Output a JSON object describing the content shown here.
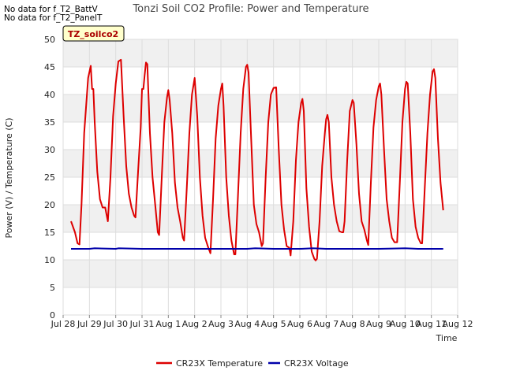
{
  "no_data_messages": [
    "No data for f_T2_BattV",
    "No data for f_T2_PanelT"
  ],
  "chart_data": {
    "type": "line",
    "title": "Tonzi Soil CO2 Profile: Power and Temperature",
    "xlabel": "Time",
    "ylabel": "Power (V) / Temperature (C)",
    "ylim": [
      0,
      50
    ],
    "xlim": [
      0,
      15
    ],
    "yticks": [
      0,
      5,
      10,
      15,
      20,
      25,
      30,
      35,
      40,
      45,
      50
    ],
    "xticks": [
      {
        "value": 0,
        "label": "Jul 28"
      },
      {
        "value": 1,
        "label": "Jul 29"
      },
      {
        "value": 2,
        "label": "Jul 30"
      },
      {
        "value": 3,
        "label": "Jul 31"
      },
      {
        "value": 4,
        "label": "Aug 1"
      },
      {
        "value": 5,
        "label": "Aug 2"
      },
      {
        "value": 6,
        "label": "Aug 3"
      },
      {
        "value": 7,
        "label": "Aug 4"
      },
      {
        "value": 8,
        "label": "Aug 5"
      },
      {
        "value": 9,
        "label": "Aug 6"
      },
      {
        "value": 10,
        "label": "Aug 7"
      },
      {
        "value": 11,
        "label": "Aug 8"
      },
      {
        "value": 12,
        "label": "Aug 9"
      },
      {
        "value": 13,
        "label": "Aug 10"
      },
      {
        "value": 14,
        "label": "Aug 11"
      },
      {
        "value": 15,
        "label": "Aug 12"
      }
    ],
    "annotation": "TZ_soilco2",
    "legend_position": "bottom",
    "series": [
      {
        "name": "CR23X Temperature",
        "color": "#dd0000",
        "points": [
          [
            0.3,
            17
          ],
          [
            0.45,
            15
          ],
          [
            0.55,
            13
          ],
          [
            0.62,
            12.8
          ],
          [
            0.7,
            20
          ],
          [
            0.8,
            33
          ],
          [
            0.95,
            43
          ],
          [
            1.05,
            45.2
          ],
          [
            1.1,
            41
          ],
          [
            1.15,
            41
          ],
          [
            1.2,
            35
          ],
          [
            1.3,
            26
          ],
          [
            1.4,
            21
          ],
          [
            1.5,
            19.5
          ],
          [
            1.6,
            19.5
          ],
          [
            1.7,
            17
          ],
          [
            1.8,
            25
          ],
          [
            1.9,
            36
          ],
          [
            2.0,
            42
          ],
          [
            2.1,
            46
          ],
          [
            2.2,
            46.3
          ],
          [
            2.3,
            36
          ],
          [
            2.4,
            27
          ],
          [
            2.5,
            22
          ],
          [
            2.6,
            19.5
          ],
          [
            2.7,
            18
          ],
          [
            2.75,
            17.7
          ],
          [
            2.85,
            26
          ],
          [
            2.95,
            34
          ],
          [
            3.0,
            41
          ],
          [
            3.05,
            41
          ],
          [
            3.1,
            43.5
          ],
          [
            3.15,
            45.8
          ],
          [
            3.2,
            45.5
          ],
          [
            3.3,
            33
          ],
          [
            3.4,
            25
          ],
          [
            3.5,
            20
          ],
          [
            3.6,
            15
          ],
          [
            3.65,
            14.5
          ],
          [
            3.75,
            25
          ],
          [
            3.85,
            35
          ],
          [
            3.95,
            39.5
          ],
          [
            4.0,
            40.8
          ],
          [
            4.05,
            39
          ],
          [
            4.15,
            33
          ],
          [
            4.25,
            24
          ],
          [
            4.35,
            19.5
          ],
          [
            4.45,
            17
          ],
          [
            4.55,
            14
          ],
          [
            4.6,
            13.5
          ],
          [
            4.7,
            23
          ],
          [
            4.8,
            33
          ],
          [
            4.9,
            40
          ],
          [
            5.0,
            43
          ],
          [
            5.1,
            36
          ],
          [
            5.2,
            25
          ],
          [
            5.3,
            18
          ],
          [
            5.4,
            14
          ],
          [
            5.5,
            12.5
          ],
          [
            5.6,
            11.2
          ],
          [
            5.7,
            21
          ],
          [
            5.8,
            32
          ],
          [
            5.9,
            38
          ],
          [
            6.0,
            41
          ],
          [
            6.05,
            42
          ],
          [
            6.1,
            38
          ],
          [
            6.2,
            25
          ],
          [
            6.3,
            18
          ],
          [
            6.4,
            13.5
          ],
          [
            6.5,
            11
          ],
          [
            6.55,
            11
          ],
          [
            6.65,
            22
          ],
          [
            6.75,
            33
          ],
          [
            6.85,
            41
          ],
          [
            6.95,
            45
          ],
          [
            7.0,
            45.4
          ],
          [
            7.05,
            44
          ],
          [
            7.15,
            32
          ],
          [
            7.25,
            20
          ],
          [
            7.35,
            16.5
          ],
          [
            7.45,
            15
          ],
          [
            7.55,
            12.5
          ],
          [
            7.6,
            13
          ],
          [
            7.7,
            25
          ],
          [
            7.8,
            35
          ],
          [
            7.9,
            40
          ],
          [
            8.0,
            41.2
          ],
          [
            8.1,
            41.3
          ],
          [
            8.2,
            30
          ],
          [
            8.3,
            20
          ],
          [
            8.4,
            15.5
          ],
          [
            8.5,
            12.5
          ],
          [
            8.6,
            12.2
          ],
          [
            8.65,
            10.8
          ],
          [
            8.75,
            17
          ],
          [
            8.85,
            28
          ],
          [
            8.95,
            35
          ],
          [
            9.05,
            38.5
          ],
          [
            9.1,
            39.2
          ],
          [
            9.15,
            37
          ],
          [
            9.25,
            23
          ],
          [
            9.35,
            16
          ],
          [
            9.45,
            11.5
          ],
          [
            9.55,
            10.2
          ],
          [
            9.6,
            9.9
          ],
          [
            9.65,
            10.2
          ],
          [
            9.75,
            17
          ],
          [
            9.85,
            27
          ],
          [
            9.95,
            33
          ],
          [
            10.0,
            35.5
          ],
          [
            10.05,
            36.3
          ],
          [
            10.1,
            35
          ],
          [
            10.2,
            25
          ],
          [
            10.3,
            20
          ],
          [
            10.4,
            17
          ],
          [
            10.5,
            15.2
          ],
          [
            10.6,
            15
          ],
          [
            10.65,
            15
          ],
          [
            10.7,
            17
          ],
          [
            10.8,
            28
          ],
          [
            10.9,
            37
          ],
          [
            11.0,
            39
          ],
          [
            11.05,
            38.5
          ],
          [
            11.15,
            31
          ],
          [
            11.25,
            22
          ],
          [
            11.35,
            17
          ],
          [
            11.45,
            15.5
          ],
          [
            11.55,
            13.5
          ],
          [
            11.6,
            12.7
          ],
          [
            11.7,
            24
          ],
          [
            11.8,
            34
          ],
          [
            11.9,
            39
          ],
          [
            12.0,
            41.5
          ],
          [
            12.05,
            42
          ],
          [
            12.1,
            40
          ],
          [
            12.2,
            30
          ],
          [
            12.3,
            21
          ],
          [
            12.4,
            17
          ],
          [
            12.5,
            14
          ],
          [
            12.6,
            13.2
          ],
          [
            12.7,
            13.2
          ],
          [
            12.8,
            24
          ],
          [
            12.9,
            35
          ],
          [
            13.0,
            41
          ],
          [
            13.05,
            42.3
          ],
          [
            13.1,
            42
          ],
          [
            13.2,
            33
          ],
          [
            13.3,
            21
          ],
          [
            13.4,
            16
          ],
          [
            13.5,
            14
          ],
          [
            13.6,
            13
          ],
          [
            13.65,
            13
          ],
          [
            13.75,
            23
          ],
          [
            13.85,
            33
          ],
          [
            13.95,
            40
          ],
          [
            14.05,
            44.2
          ],
          [
            14.1,
            44.6
          ],
          [
            14.15,
            43
          ],
          [
            14.25,
            32
          ],
          [
            14.35,
            24
          ],
          [
            14.45,
            19
          ]
        ]
      },
      {
        "name": "CR23X Voltage",
        "color": "#0000aa",
        "points": [
          [
            0.3,
            12.0
          ],
          [
            1.0,
            12.0
          ],
          [
            1.2,
            12.1
          ],
          [
            2.0,
            12.0
          ],
          [
            2.1,
            12.1
          ],
          [
            3.0,
            12.0
          ],
          [
            3.5,
            12.0
          ],
          [
            4.5,
            12.0
          ],
          [
            5.5,
            12.0
          ],
          [
            6.0,
            12.0
          ],
          [
            7.0,
            12.0
          ],
          [
            7.3,
            12.1
          ],
          [
            8.0,
            12.0
          ],
          [
            8.5,
            12.0
          ],
          [
            9.0,
            12.0
          ],
          [
            9.5,
            12.1
          ],
          [
            10.0,
            12.0
          ],
          [
            11.0,
            12.0
          ],
          [
            12.0,
            12.0
          ],
          [
            13.0,
            12.1
          ],
          [
            13.5,
            12.0
          ],
          [
            14.0,
            12.0
          ],
          [
            14.45,
            12.0
          ]
        ]
      }
    ]
  }
}
